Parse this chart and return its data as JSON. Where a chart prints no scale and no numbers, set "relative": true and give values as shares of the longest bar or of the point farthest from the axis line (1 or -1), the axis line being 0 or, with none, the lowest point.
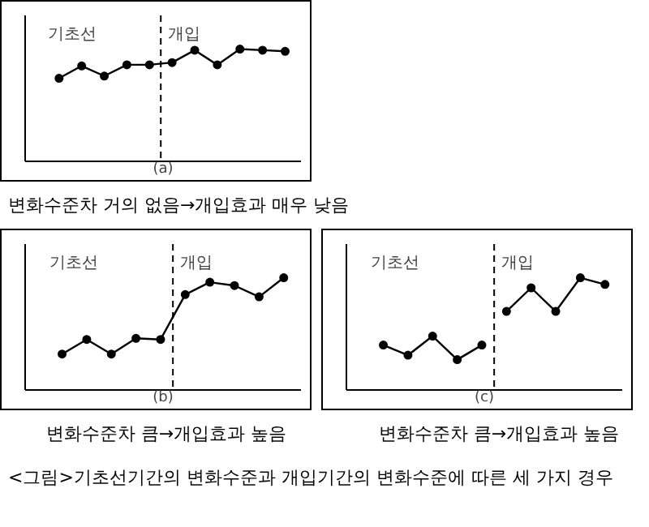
{
  "chart_data": [
    {
      "type": "line",
      "xlabel": "(a)",
      "relative": true,
      "tick_labels": false,
      "marker": "circle",
      "annotations": [
        "기초선",
        "개입",
        "변화수준차 거의 없음→개입효과 매우 낮음"
      ],
      "categories": [
        null,
        null,
        null,
        null,
        null,
        null,
        null,
        null,
        null,
        null,
        null
      ],
      "series": [
        {
          "color": "#000000",
          "values": [
            0.74,
            0.85,
            0.76,
            0.86,
            0.86,
            0.88,
            0.99,
            0.86,
            1.0,
            0.99,
            0.98
          ]
        }
      ]
    },
    {
      "type": "line",
      "xlabel": "(b)",
      "relative": true,
      "tick_labels": false,
      "marker": "circle",
      "annotations": [
        "기초선",
        "개입",
        "변화수준차 큼→개입효과 높음"
      ],
      "categories": [
        null,
        null,
        null,
        null,
        null,
        null,
        null,
        null,
        null,
        null
      ],
      "series": [
        {
          "color": "#000000",
          "values": [
            0.32,
            0.45,
            0.32,
            0.46,
            0.45,
            0.85,
            0.96,
            0.93,
            0.83,
            1.0
          ]
        }
      ]
    },
    {
      "type": "line",
      "xlabel": "(c)",
      "relative": true,
      "tick_labels": false,
      "marker": "circle",
      "annotations": [
        "기초선",
        "개입",
        "변화수준차 큼→개입효과 높음",
        "<그림>기초선기간의 변화수준과 개입기간의 변화수준에 따른 세 가지 경우"
      ],
      "categories": [
        null,
        null,
        null,
        null,
        null,
        null,
        null,
        null,
        null,
        null
      ],
      "series": [
        {
          "color": "#000000",
          "values": [
            0.4,
            0.31,
            0.48,
            0.27,
            0.4,
            null,
            null,
            null,
            null,
            null
          ]
        },
        {
          "color": "#000000",
          "values": [
            null,
            null,
            null,
            null,
            null,
            0.7,
            0.91,
            0.7,
            1.0,
            0.94
          ]
        }
      ]
    }
  ]
}
